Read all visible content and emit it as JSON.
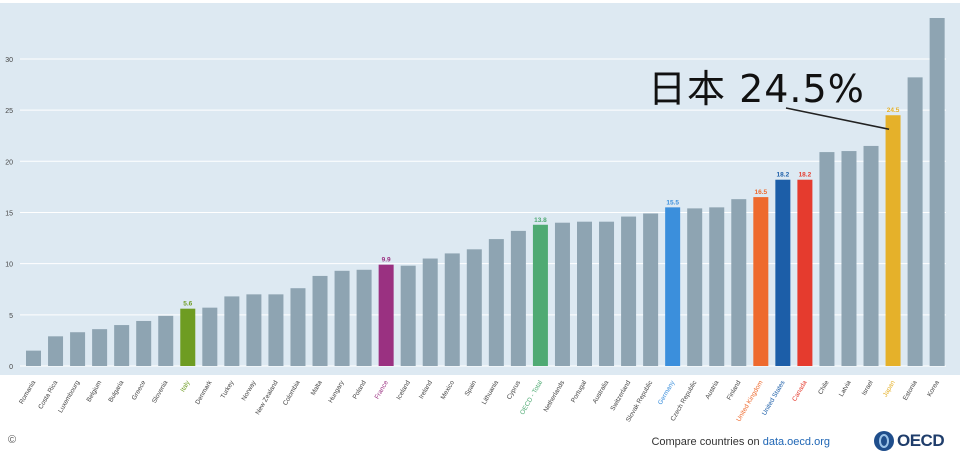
{
  "chart_data": {
    "type": "bar",
    "title": "",
    "xlabel": "",
    "ylabel": "",
    "ylim": [
      0,
      34
    ],
    "yticks": [
      0,
      5,
      10,
      15,
      20,
      25,
      30
    ],
    "grid": true,
    "categories": [
      "Romania",
      "Costa Rica",
      "Luxembourg",
      "Belgium",
      "Bulgaria",
      "Greece",
      "Slovenia",
      "Italy",
      "Denmark",
      "Turkey",
      "Norway",
      "New Zealand",
      "Colombia",
      "Malta",
      "Hungary",
      "Poland",
      "France",
      "Iceland",
      "Ireland",
      "Mexico",
      "Spain",
      "Lithuania",
      "Cyprus",
      "OECD - Total",
      "Netherlands",
      "Portugal",
      "Australia",
      "Switzerland",
      "Slovak Republic",
      "Germany",
      "Czech Republic",
      "Austria",
      "Finland",
      "United Kingdom",
      "United States",
      "Canada",
      "Chile",
      "Latvia",
      "Israel",
      "Japan",
      "Estonia",
      "Korea"
    ],
    "values": [
      1.5,
      2.9,
      3.3,
      3.6,
      4.0,
      4.4,
      4.9,
      5.6,
      5.7,
      6.8,
      7.0,
      7.0,
      7.6,
      8.8,
      9.3,
      9.4,
      9.9,
      9.8,
      10.5,
      11.0,
      11.4,
      12.4,
      13.2,
      13.8,
      14.0,
      14.1,
      14.1,
      14.6,
      14.9,
      15.5,
      15.4,
      15.5,
      16.3,
      16.5,
      18.2,
      18.2,
      20.9,
      21.0,
      21.5,
      24.5,
      28.2,
      34.0
    ],
    "highlights": [
      {
        "category": "Italy",
        "label": "5.6",
        "color": "#6e9c22"
      },
      {
        "category": "France",
        "label": "9.9",
        "color": "#9a3181"
      },
      {
        "category": "OECD - Total",
        "label": "13.8",
        "color": "#4faa73"
      },
      {
        "category": "Germany",
        "label": "15.5",
        "color": "#3b8fdc"
      },
      {
        "category": "United Kingdom",
        "label": "16.5",
        "color": "#ee6a2e"
      },
      {
        "category": "United States",
        "label": "18.2",
        "color": "#1c5ea8"
      },
      {
        "category": "Canada",
        "label": "18.2",
        "color": "#e53b2e"
      },
      {
        "category": "Japan",
        "label": "24.5",
        "color": "#e5b12a"
      }
    ],
    "default_color": "#8ea4b2",
    "plot_background": "#dde9f2",
    "annotation": {
      "text": "日本 24.5%",
      "target": "Japan"
    }
  },
  "footer": {
    "prefix": "Compare countries on ",
    "link": "data.oecd.org",
    "copyright": "©",
    "logo_text": "OECD"
  }
}
